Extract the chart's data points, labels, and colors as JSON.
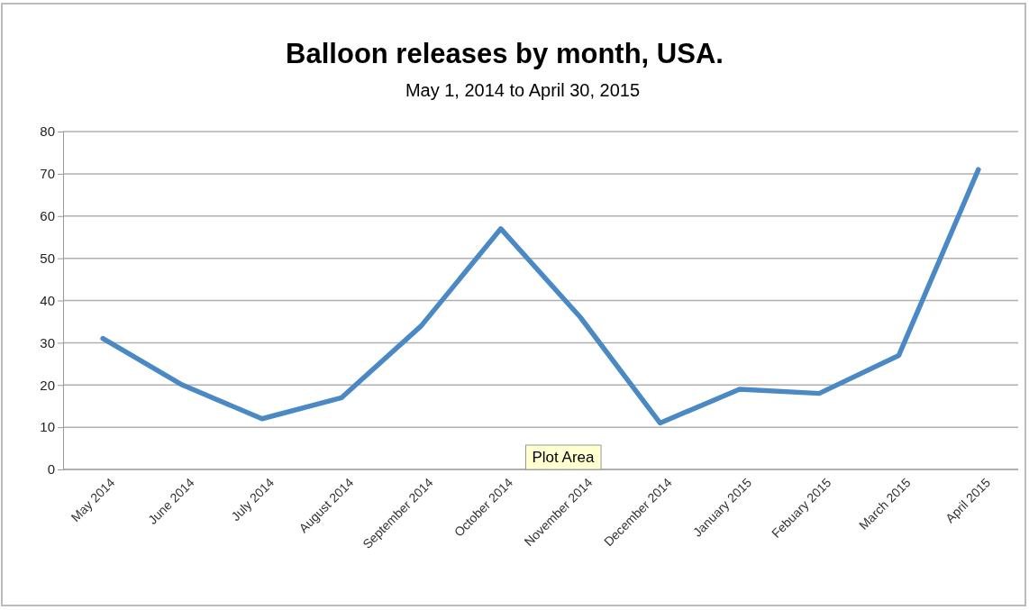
{
  "chart_data": {
    "type": "line",
    "title": "Balloon releases by month, USA.",
    "subtitle": "May 1, 2014 to April 30, 2015",
    "categories": [
      "May 2014",
      "June 2014",
      "July 2014",
      "August 2014",
      "September 2014",
      "October 2014",
      "November 2014",
      "December 2014",
      "January 2015",
      "Febuary 2015",
      "March 2015",
      "April 2015"
    ],
    "series": [
      {
        "color": "#4a89c3",
        "values": [
          31,
          20,
          12,
          17,
          34,
          57,
          36,
          11,
          19,
          18,
          27,
          71
        ]
      }
    ],
    "ylim": [
      0,
      80
    ],
    "yticks": [
      0,
      10,
      20,
      30,
      40,
      50,
      60,
      70,
      80
    ],
    "grid": "y",
    "marker": "none",
    "line_style": "solid",
    "annotations": [
      "Plot Area"
    ]
  }
}
